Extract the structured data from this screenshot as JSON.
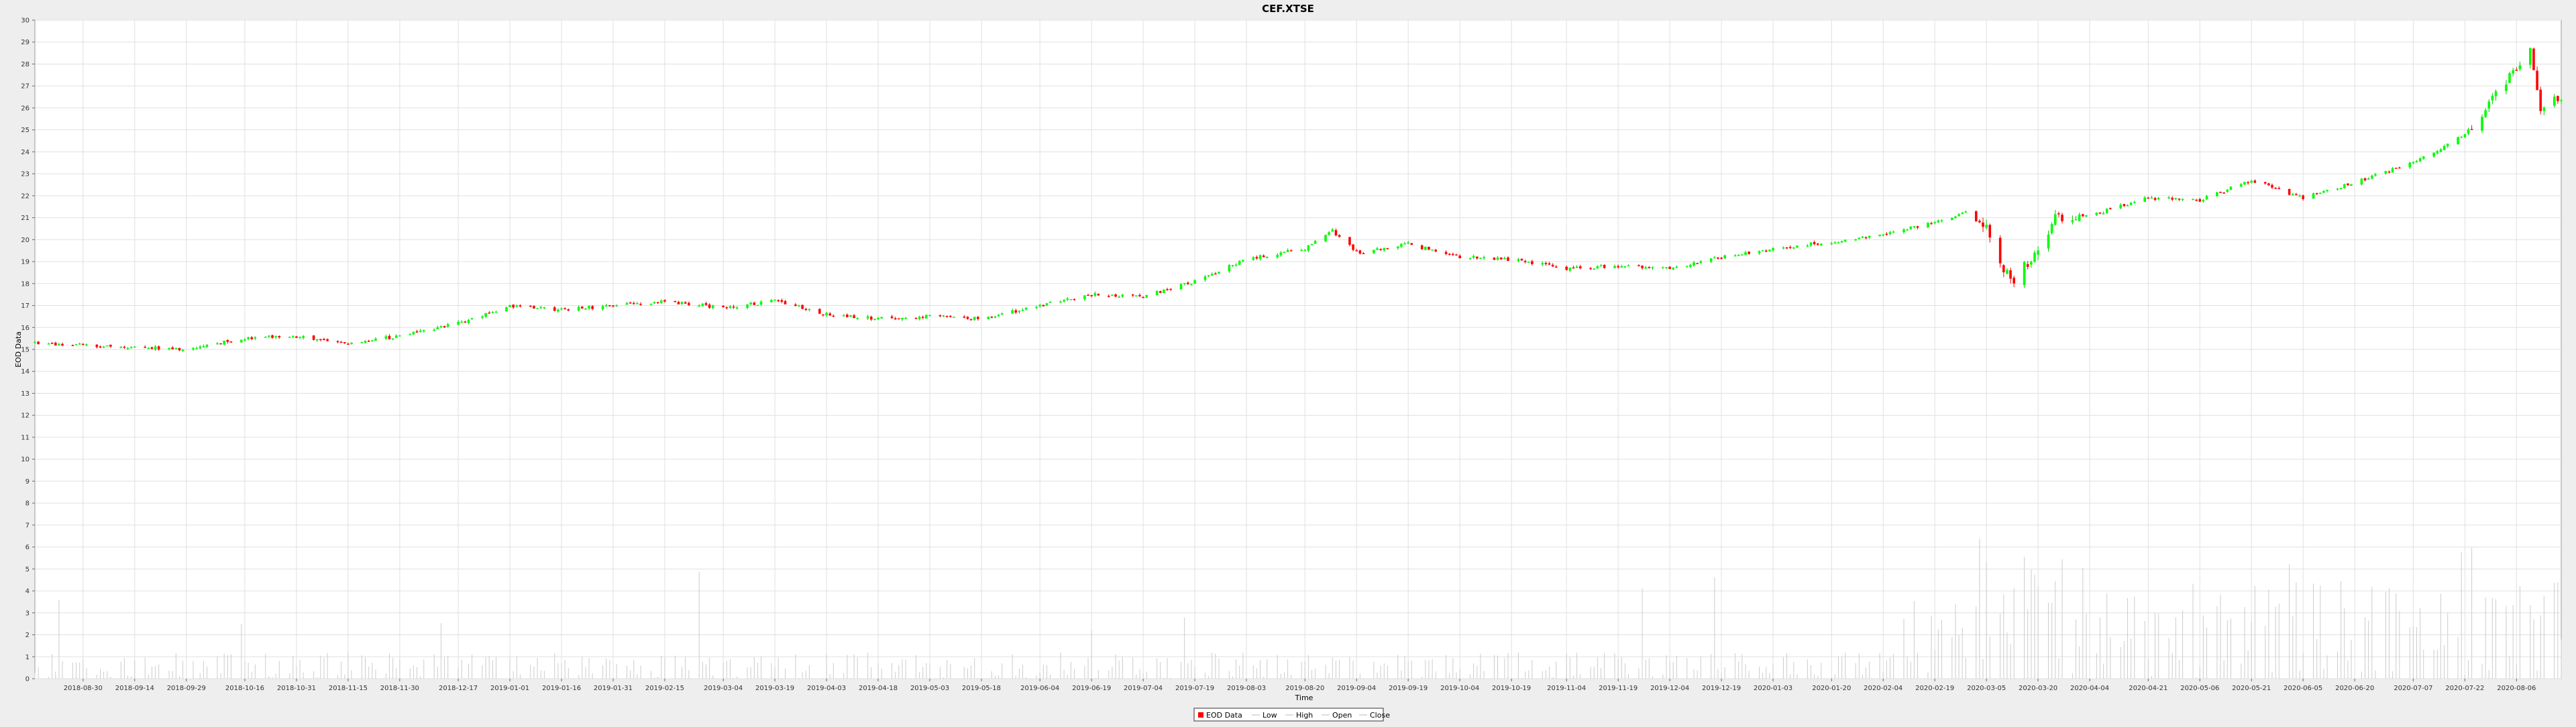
{
  "chart_data": {
    "type": "candlestick",
    "title": "CEF.XTSE",
    "xlabel": "Time",
    "ylabel": "EOD Data",
    "ylim": [
      0,
      30
    ],
    "y_ticks": [
      0,
      1,
      2,
      3,
      4,
      5,
      6,
      7,
      8,
      9,
      10,
      11,
      12,
      13,
      14,
      15,
      16,
      17,
      18,
      19,
      20,
      21,
      22,
      23,
      24,
      25,
      26,
      27,
      28,
      29,
      30
    ],
    "x_range": [
      "2018-08-16",
      "2020-08-19"
    ],
    "x_ticks": [
      "2018-08-30",
      "2018-09-14",
      "2018-09-29",
      "2018-10-16",
      "2018-10-31",
      "2018-11-15",
      "2018-11-30",
      "2018-12-17",
      "2019-01-01",
      "2019-01-16",
      "2019-01-31",
      "2019-02-15",
      "2019-03-04",
      "2019-03-19",
      "2019-04-03",
      "2019-04-18",
      "2019-05-03",
      "2019-05-18",
      "2019-06-04",
      "2019-06-19",
      "2019-07-04",
      "2019-07-19",
      "2019-08-03",
      "2019-08-20",
      "2019-09-04",
      "2019-09-19",
      "2019-10-04",
      "2019-10-19",
      "2019-11-04",
      "2019-11-19",
      "2019-12-04",
      "2019-12-19",
      "2020-01-03",
      "2020-01-20",
      "2020-02-04",
      "2020-02-19",
      "2020-03-05",
      "2020-03-20",
      "2020-04-04",
      "2020-04-21",
      "2020-05-06",
      "2020-05-21",
      "2020-06-05",
      "2020-06-20",
      "2020-07-07",
      "2020-07-22",
      "2020-08-06"
    ],
    "grid": true,
    "legend_position": "bottom-center",
    "legend": [
      "EOD Data",
      "Low",
      "High",
      "Open",
      "Close"
    ],
    "colors": {
      "up": "#00ff00",
      "down": "#ff0000",
      "wick_up": "#00cc00",
      "wick_down": "#ff0000",
      "volume": "#cccccc",
      "grid": "#e0e0e0",
      "plot_bg": "#ffffff",
      "page_bg": "#eeeeee"
    },
    "anchors": [
      [
        "2018-08-16",
        15.3
      ],
      [
        "2018-09-14",
        15.1
      ],
      [
        "2018-09-29",
        15.0
      ],
      [
        "2018-10-16",
        15.5
      ],
      [
        "2018-10-31",
        15.6
      ],
      [
        "2018-11-15",
        15.3
      ],
      [
        "2018-11-30",
        15.6
      ],
      [
        "2018-12-17",
        16.2
      ],
      [
        "2019-01-01",
        17.0
      ],
      [
        "2019-01-16",
        16.8
      ],
      [
        "2019-01-31",
        17.0
      ],
      [
        "2019-02-15",
        17.2
      ],
      [
        "2019-03-04",
        16.9
      ],
      [
        "2019-03-19",
        17.2
      ],
      [
        "2019-04-03",
        16.6
      ],
      [
        "2019-04-18",
        16.4
      ],
      [
        "2019-05-03",
        16.5
      ],
      [
        "2019-05-18",
        16.4
      ],
      [
        "2019-06-04",
        17.0
      ],
      [
        "2019-06-19",
        17.5
      ],
      [
        "2019-07-04",
        17.4
      ],
      [
        "2019-07-19",
        18.1
      ],
      [
        "2019-08-03",
        19.1
      ],
      [
        "2019-08-20",
        19.6
      ],
      [
        "2019-08-28",
        20.4
      ],
      [
        "2019-09-04",
        19.4
      ],
      [
        "2019-09-19",
        19.8
      ],
      [
        "2019-10-04",
        19.2
      ],
      [
        "2019-10-19",
        19.1
      ],
      [
        "2019-11-04",
        18.7
      ],
      [
        "2019-11-19",
        18.8
      ],
      [
        "2019-12-04",
        18.7
      ],
      [
        "2019-12-19",
        19.2
      ],
      [
        "2020-01-03",
        19.6
      ],
      [
        "2020-01-20",
        19.9
      ],
      [
        "2020-02-04",
        20.2
      ],
      [
        "2020-02-19",
        20.8
      ],
      [
        "2020-02-28",
        21.2
      ],
      [
        "2020-03-05",
        20.6
      ],
      [
        "2020-03-12",
        18.0
      ],
      [
        "2020-03-20",
        19.6
      ],
      [
        "2020-03-25",
        21.0
      ],
      [
        "2020-04-04",
        21.1
      ],
      [
        "2020-04-21",
        21.9
      ],
      [
        "2020-05-06",
        21.8
      ],
      [
        "2020-05-21",
        22.7
      ],
      [
        "2020-06-05",
        21.9
      ],
      [
        "2020-06-20",
        22.6
      ],
      [
        "2020-07-07",
        23.5
      ],
      [
        "2020-07-22",
        24.8
      ],
      [
        "2020-08-01",
        26.8
      ],
      [
        "2020-08-10",
        28.6
      ],
      [
        "2020-08-13",
        26.0
      ],
      [
        "2020-08-19",
        26.5
      ]
    ],
    "volume_max": 12
  }
}
